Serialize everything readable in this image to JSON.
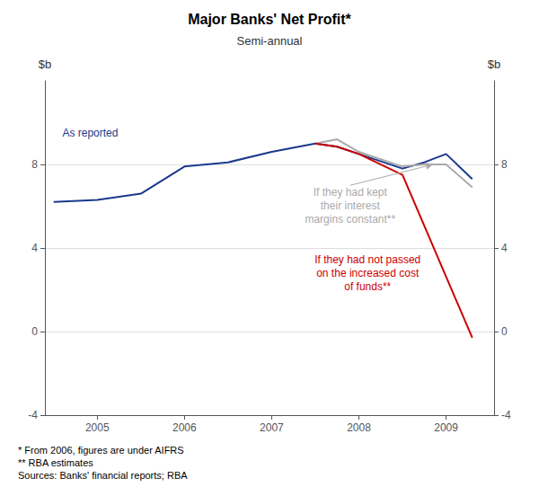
{
  "chart_data": {
    "type": "line",
    "title": "Major Banks' Net Profit*",
    "subtitle": "Semi-annual",
    "y_label": "$b",
    "y2_label": "$b",
    "xlim": [
      2004.4,
      2009.55
    ],
    "xticks": [
      2005,
      2006,
      2007,
      2008,
      2009
    ],
    "ylim": [
      -4,
      12
    ],
    "yticks": [
      -4,
      0,
      4,
      8
    ],
    "y2lim": [
      -4,
      12
    ],
    "y2ticks": [
      -4,
      0,
      4,
      8
    ],
    "grid": true,
    "series": [
      {
        "color": "#1a3a8c",
        "x": [
          2004.5,
          2005.0,
          2005.5,
          2006.0,
          2006.5,
          2007.0,
          2007.5,
          2007.75,
          2008.0,
          2008.5,
          2008.75,
          2009.0,
          2009.3
        ],
        "values": [
          6.2,
          6.3,
          6.6,
          7.9,
          8.1,
          8.6,
          9.0,
          8.85,
          8.5,
          7.8,
          8.1,
          8.5,
          7.3
        ]
      },
      {
        "color": "#aaaaaa",
        "x": [
          2007.5,
          2007.75,
          2008.0,
          2008.5,
          2008.75,
          2009.0,
          2009.3
        ],
        "values": [
          9.0,
          9.2,
          8.6,
          7.9,
          8.0,
          8.0,
          6.9
        ]
      },
      {
        "color": "#cc0000",
        "x": [
          2007.5,
          2007.75,
          2008.0,
          2008.5,
          2009.3
        ],
        "values": [
          9.0,
          8.85,
          8.5,
          7.5,
          -0.3
        ]
      }
    ],
    "annotations": [
      {
        "text": "As reported",
        "x": 2004.6,
        "y": 9.5,
        "color": "#1a3a8c"
      },
      {
        "text": "If they had kept\ntheir interest\nmargins constant**",
        "x": 2007.9,
        "y": 7.0,
        "color": "#aaaaaa",
        "arrow_x": 2008.85,
        "arrow_y": 8.0
      },
      {
        "text": "If they had not passed\non the increased cost\nof funds**",
        "x": 2008.1,
        "y": 2.8,
        "color": "#cc0000"
      }
    ],
    "footnotes": "* From 2006, figures are under AIFRS\n** RBA estimates\nSources: Banks' financial reports; RBA"
  }
}
